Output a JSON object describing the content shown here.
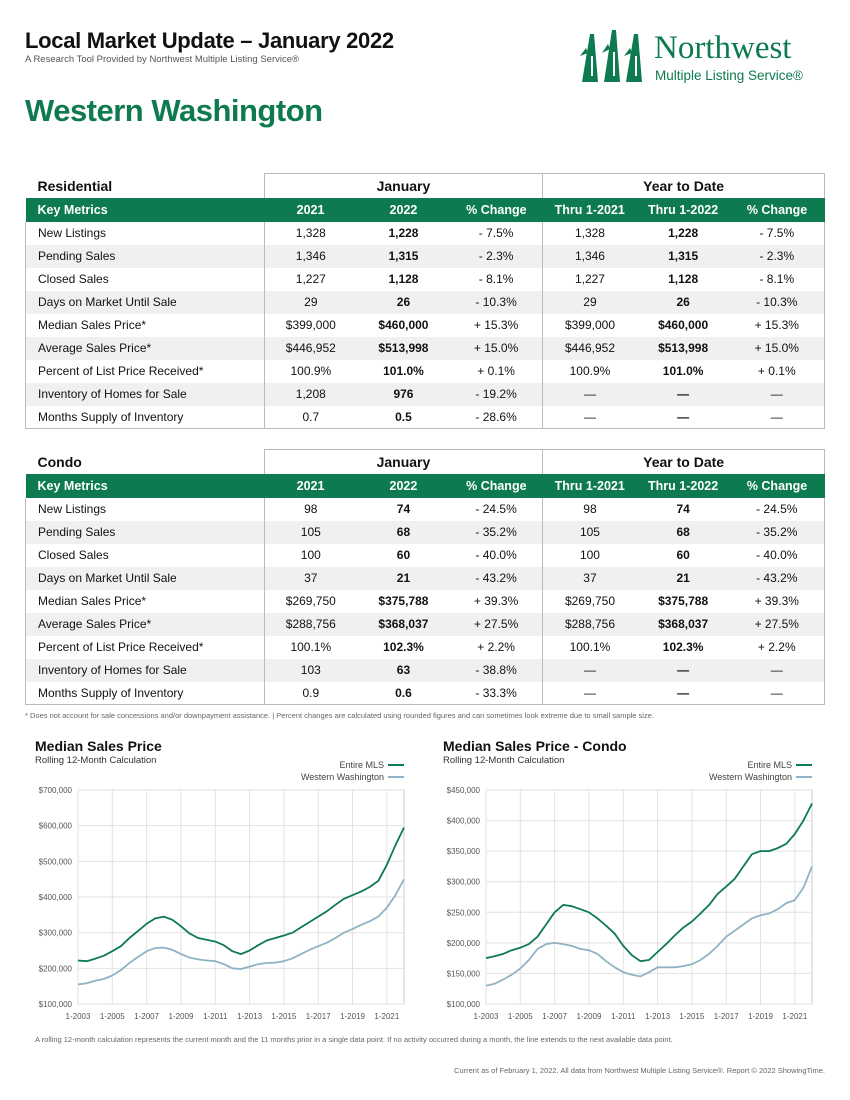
{
  "header": {
    "title": "Local Market Update – January 2022",
    "subtitle": "A Research Tool Provided by Northwest Multiple Listing Service®",
    "region": "Western Washington"
  },
  "logo": {
    "name": "Northwest",
    "tagline": "Multiple Listing Service®",
    "color": "#0e7a4f"
  },
  "colors": {
    "brand_green": "#0e7a4f",
    "series_blue": "#8fb3c4",
    "row_alt": "#f0f0f0"
  },
  "tables": [
    {
      "section": "Residential",
      "group_january": "January",
      "group_ytd": "Year to Date",
      "headers": [
        "Key Metrics",
        "2021",
        "2022",
        "% Change",
        "Thru 1-2021",
        "Thru 1-2022",
        "% Change"
      ],
      "rows": [
        {
          "label": "New Listings",
          "v2021": "1,328",
          "v2022": "1,228",
          "chg": "- 7.5%",
          "t2021": "1,328",
          "t2022": "1,228",
          "tchg": "- 7.5%"
        },
        {
          "label": "Pending Sales",
          "v2021": "1,346",
          "v2022": "1,315",
          "chg": "- 2.3%",
          "t2021": "1,346",
          "t2022": "1,315",
          "tchg": "- 2.3%"
        },
        {
          "label": "Closed Sales",
          "v2021": "1,227",
          "v2022": "1,128",
          "chg": "- 8.1%",
          "t2021": "1,227",
          "t2022": "1,128",
          "tchg": "- 8.1%"
        },
        {
          "label": "Days on Market Until Sale",
          "v2021": "29",
          "v2022": "26",
          "chg": "- 10.3%",
          "t2021": "29",
          "t2022": "26",
          "tchg": "- 10.3%"
        },
        {
          "label": "Median Sales Price*",
          "v2021": "$399,000",
          "v2022": "$460,000",
          "chg": "+ 15.3%",
          "t2021": "$399,000",
          "t2022": "$460,000",
          "tchg": "+ 15.3%"
        },
        {
          "label": "Average Sales Price*",
          "v2021": "$446,952",
          "v2022": "$513,998",
          "chg": "+ 15.0%",
          "t2021": "$446,952",
          "t2022": "$513,998",
          "tchg": "+ 15.0%"
        },
        {
          "label": "Percent of List Price Received*",
          "v2021": "100.9%",
          "v2022": "101.0%",
          "chg": "+ 0.1%",
          "t2021": "100.9%",
          "t2022": "101.0%",
          "tchg": "+ 0.1%"
        },
        {
          "label": "Inventory of Homes for Sale",
          "v2021": "1,208",
          "v2022": "976",
          "chg": "- 19.2%",
          "t2021": "—",
          "t2022": "—",
          "tchg": "—"
        },
        {
          "label": "Months Supply of Inventory",
          "v2021": "0.7",
          "v2022": "0.5",
          "chg": "- 28.6%",
          "t2021": "—",
          "t2022": "—",
          "tchg": "—"
        }
      ]
    },
    {
      "section": "Condo",
      "group_january": "January",
      "group_ytd": "Year to Date",
      "headers": [
        "Key Metrics",
        "2021",
        "2022",
        "% Change",
        "Thru 1-2021",
        "Thru 1-2022",
        "% Change"
      ],
      "rows": [
        {
          "label": "New Listings",
          "v2021": "98",
          "v2022": "74",
          "chg": "- 24.5%",
          "t2021": "98",
          "t2022": "74",
          "tchg": "- 24.5%"
        },
        {
          "label": "Pending Sales",
          "v2021": "105",
          "v2022": "68",
          "chg": "- 35.2%",
          "t2021": "105",
          "t2022": "68",
          "tchg": "- 35.2%"
        },
        {
          "label": "Closed Sales",
          "v2021": "100",
          "v2022": "60",
          "chg": "- 40.0%",
          "t2021": "100",
          "t2022": "60",
          "tchg": "- 40.0%"
        },
        {
          "label": "Days on Market Until Sale",
          "v2021": "37",
          "v2022": "21",
          "chg": "- 43.2%",
          "t2021": "37",
          "t2022": "21",
          "tchg": "- 43.2%"
        },
        {
          "label": "Median Sales Price*",
          "v2021": "$269,750",
          "v2022": "$375,788",
          "chg": "+ 39.3%",
          "t2021": "$269,750",
          "t2022": "$375,788",
          "tchg": "+ 39.3%"
        },
        {
          "label": "Average Sales Price*",
          "v2021": "$288,756",
          "v2022": "$368,037",
          "chg": "+ 27.5%",
          "t2021": "$288,756",
          "t2022": "$368,037",
          "tchg": "+ 27.5%"
        },
        {
          "label": "Percent of List Price Received*",
          "v2021": "100.1%",
          "v2022": "102.3%",
          "chg": "+ 2.2%",
          "t2021": "100.1%",
          "t2022": "102.3%",
          "tchg": "+ 2.2%"
        },
        {
          "label": "Inventory of Homes for Sale",
          "v2021": "103",
          "v2022": "63",
          "chg": "- 38.8%",
          "t2021": "—",
          "t2022": "—",
          "tchg": "—"
        },
        {
          "label": "Months Supply of Inventory",
          "v2021": "0.9",
          "v2022": "0.6",
          "chg": "- 33.3%",
          "t2021": "—",
          "t2022": "—",
          "tchg": "—"
        }
      ]
    }
  ],
  "footnote": "* Does not account for sale concessions and/or downpayment assistance. | Percent changes are calculated using rounded figures and can sometimes look extreme due to small sample size.",
  "chart_note": "A rolling 12-month calculation represents the current month and the 11 months prior in a single data point. If no activity occurred during a month, the line extends to the next available data point.",
  "current_note": "Current as of February 1, 2022. All data from Northwest Multiple Listing Service®. Report © 2022 ShowingTime.",
  "chart_data": [
    {
      "type": "line",
      "title": "Median Sales Price",
      "subtitle": "Rolling 12-Month Calculation",
      "x_ticks": [
        "1-2003",
        "1-2005",
        "1-2007",
        "1-2009",
        "1-2011",
        "1-2013",
        "1-2015",
        "1-2017",
        "1-2019",
        "1-2021"
      ],
      "y_ticks": [
        "$100,000",
        "$200,000",
        "$300,000",
        "$400,000",
        "$500,000",
        "$600,000",
        "$700,000"
      ],
      "ylim": [
        100000,
        700000
      ],
      "xlim": [
        2003.0,
        2022.0
      ],
      "legend": "top-right",
      "grid": true,
      "series": [
        {
          "name": "Entire MLS",
          "color": "#0e7a4f",
          "x": [
            2003.0,
            2003.5,
            2004.0,
            2004.5,
            2005.0,
            2005.5,
            2006.0,
            2006.5,
            2007.0,
            2007.5,
            2008.0,
            2008.5,
            2009.0,
            2009.5,
            2010.0,
            2010.5,
            2011.0,
            2011.5,
            2012.0,
            2012.5,
            2013.0,
            2013.5,
            2014.0,
            2014.5,
            2015.0,
            2015.5,
            2016.0,
            2016.5,
            2017.0,
            2017.5,
            2018.0,
            2018.5,
            2019.0,
            2019.5,
            2020.0,
            2020.5,
            2021.0,
            2021.5,
            2022.0
          ],
          "y": [
            222000,
            220000,
            227000,
            235000,
            248000,
            262000,
            285000,
            305000,
            325000,
            340000,
            345000,
            336000,
            318000,
            298000,
            285000,
            280000,
            275000,
            265000,
            248000,
            240000,
            250000,
            265000,
            278000,
            285000,
            292000,
            300000,
            315000,
            330000,
            345000,
            360000,
            378000,
            395000,
            405000,
            415000,
            428000,
            445000,
            490000,
            545000,
            595000
          ]
        },
        {
          "name": "Western Washington",
          "color": "#8fb3c4",
          "x": [
            2003.0,
            2003.5,
            2004.0,
            2004.5,
            2005.0,
            2005.5,
            2006.0,
            2006.5,
            2007.0,
            2007.5,
            2008.0,
            2008.5,
            2009.0,
            2009.5,
            2010.0,
            2010.5,
            2011.0,
            2011.5,
            2012.0,
            2012.5,
            2013.0,
            2013.5,
            2014.0,
            2014.5,
            2015.0,
            2015.5,
            2016.0,
            2016.5,
            2017.0,
            2017.5,
            2018.0,
            2018.5,
            2019.0,
            2019.5,
            2020.0,
            2020.5,
            2021.0,
            2021.5,
            2022.0
          ],
          "y": [
            155000,
            158000,
            165000,
            170000,
            180000,
            195000,
            215000,
            232000,
            248000,
            257000,
            258000,
            252000,
            240000,
            230000,
            225000,
            222000,
            220000,
            212000,
            200000,
            198000,
            205000,
            212000,
            215000,
            216000,
            220000,
            228000,
            240000,
            252000,
            262000,
            272000,
            285000,
            300000,
            310000,
            322000,
            332000,
            345000,
            370000,
            405000,
            450000
          ]
        }
      ]
    },
    {
      "type": "line",
      "title": "Median Sales Price - Condo",
      "subtitle": "Rolling 12-Month Calculation",
      "x_ticks": [
        "1-2003",
        "1-2005",
        "1-2007",
        "1-2009",
        "1-2011",
        "1-2013",
        "1-2015",
        "1-2017",
        "1-2019",
        "1-2021"
      ],
      "y_ticks": [
        "$100,000",
        "$150,000",
        "$200,000",
        "$250,000",
        "$300,000",
        "$350,000",
        "$400,000",
        "$450,000"
      ],
      "ylim": [
        100000,
        450000
      ],
      "xlim": [
        2003.0,
        2022.0
      ],
      "legend": "top-right",
      "grid": true,
      "series": [
        {
          "name": "Entire MLS",
          "color": "#0e7a4f",
          "x": [
            2003.0,
            2003.5,
            2004.0,
            2004.5,
            2005.0,
            2005.5,
            2006.0,
            2006.5,
            2007.0,
            2007.5,
            2008.0,
            2008.5,
            2009.0,
            2009.5,
            2010.0,
            2010.5,
            2011.0,
            2011.5,
            2012.0,
            2012.5,
            2013.0,
            2013.5,
            2014.0,
            2014.5,
            2015.0,
            2015.5,
            2016.0,
            2016.5,
            2017.0,
            2017.5,
            2018.0,
            2018.5,
            2019.0,
            2019.5,
            2020.0,
            2020.5,
            2021.0,
            2021.5,
            2022.0
          ],
          "y": [
            175000,
            178000,
            182000,
            188000,
            192000,
            198000,
            210000,
            230000,
            250000,
            262000,
            260000,
            255000,
            250000,
            240000,
            228000,
            215000,
            195000,
            180000,
            170000,
            172000,
            185000,
            198000,
            212000,
            225000,
            235000,
            248000,
            262000,
            280000,
            292000,
            305000,
            325000,
            345000,
            350000,
            350000,
            355000,
            362000,
            378000,
            400000,
            428000
          ]
        },
        {
          "name": "Western Washington",
          "color": "#8fb3c4",
          "x": [
            2003.0,
            2003.5,
            2004.0,
            2004.5,
            2005.0,
            2005.5,
            2006.0,
            2006.5,
            2007.0,
            2007.5,
            2008.0,
            2008.5,
            2009.0,
            2009.5,
            2010.0,
            2010.5,
            2011.0,
            2011.5,
            2012.0,
            2012.5,
            2013.0,
            2013.5,
            2014.0,
            2014.5,
            2015.0,
            2015.5,
            2016.0,
            2016.5,
            2017.0,
            2017.5,
            2018.0,
            2018.5,
            2019.0,
            2019.5,
            2020.0,
            2020.5,
            2021.0,
            2021.5,
            2022.0
          ],
          "y": [
            130000,
            133000,
            140000,
            148000,
            158000,
            172000,
            190000,
            198000,
            200000,
            198000,
            195000,
            190000,
            188000,
            182000,
            170000,
            160000,
            152000,
            148000,
            145000,
            152000,
            160000,
            160000,
            160000,
            162000,
            165000,
            172000,
            182000,
            195000,
            210000,
            220000,
            230000,
            240000,
            245000,
            248000,
            255000,
            265000,
            270000,
            290000,
            325000
          ]
        }
      ]
    }
  ]
}
